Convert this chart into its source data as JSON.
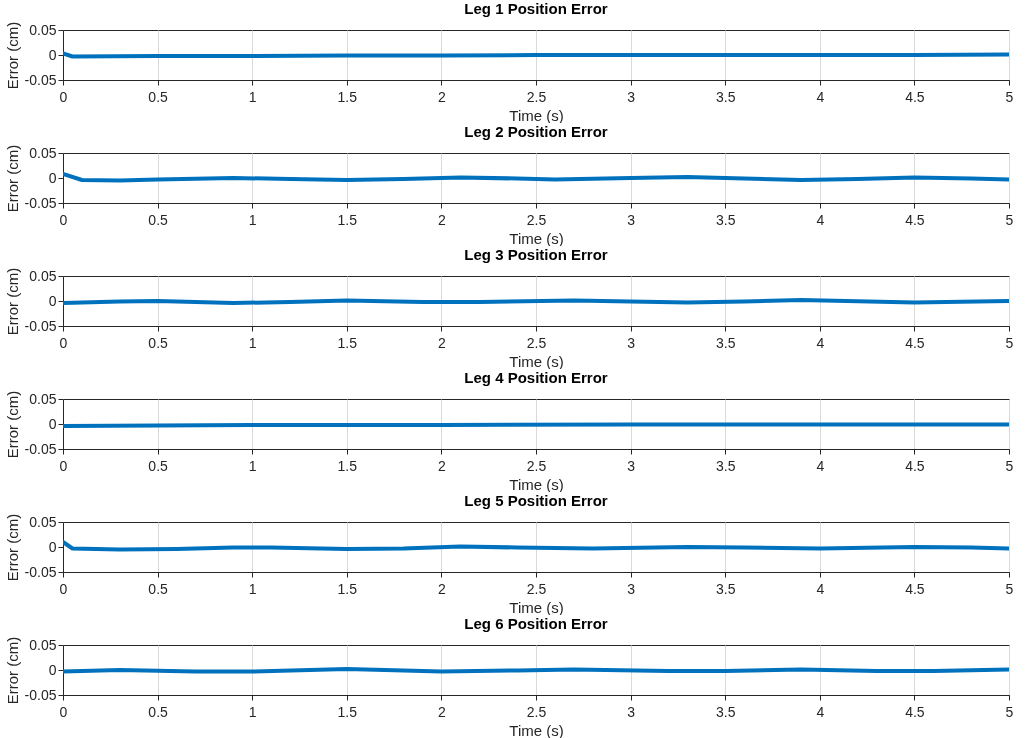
{
  "chart_data": [
    {
      "type": "line",
      "title": "Leg 1 Position Error",
      "xlabel": "Time (s)",
      "ylabel": "Error (cm)",
      "xlim": [
        0,
        5
      ],
      "ylim": [
        -0.05,
        0.05
      ],
      "xticks": [
        0,
        0.5,
        1,
        1.5,
        2,
        2.5,
        3,
        3.5,
        4,
        4.5,
        5
      ],
      "yticks": [
        -0.05,
        0,
        0.05
      ],
      "grid": "x",
      "series": [
        {
          "color": "#0072bd",
          "x": [
            0,
            0.05,
            0.5,
            1,
            1.5,
            2,
            2.5,
            3,
            3.5,
            4,
            4.5,
            5
          ],
          "values": [
            0.003,
            -0.003,
            -0.002,
            -0.002,
            -0.001,
            -0.001,
            0,
            0,
            0,
            0,
            0,
            0.001
          ]
        }
      ]
    },
    {
      "type": "line",
      "title": "Leg 2 Position Error",
      "xlabel": "Time (s)",
      "ylabel": "Error (cm)",
      "xlim": [
        0,
        5
      ],
      "ylim": [
        -0.05,
        0.05
      ],
      "xticks": [
        0,
        0.5,
        1,
        1.5,
        2,
        2.5,
        3,
        3.5,
        4,
        4.5,
        5
      ],
      "yticks": [
        -0.05,
        0,
        0.05
      ],
      "grid": "x",
      "series": [
        {
          "color": "#0072bd",
          "x": [
            0,
            0.1,
            0.3,
            0.5,
            0.9,
            1.2,
            1.5,
            1.8,
            2.1,
            2.4,
            2.6,
            3,
            3.3,
            3.6,
            3.9,
            4.2,
            4.5,
            4.8,
            5
          ],
          "values": [
            0.008,
            -0.004,
            -0.005,
            -0.003,
            0,
            -0.002,
            -0.004,
            -0.002,
            0.001,
            -0.001,
            -0.003,
            0,
            0.002,
            -0.001,
            -0.004,
            -0.002,
            0.001,
            -0.001,
            -0.003
          ]
        }
      ]
    },
    {
      "type": "line",
      "title": "Leg 3 Position Error",
      "xlabel": "Time (s)",
      "ylabel": "Error (cm)",
      "xlim": [
        0,
        5
      ],
      "ylim": [
        -0.05,
        0.05
      ],
      "xticks": [
        0,
        0.5,
        1,
        1.5,
        2,
        2.5,
        3,
        3.5,
        4,
        4.5,
        5
      ],
      "yticks": [
        -0.05,
        0,
        0.05
      ],
      "grid": "x",
      "series": [
        {
          "color": "#0072bd",
          "x": [
            0,
            0.3,
            0.5,
            0.9,
            1.2,
            1.5,
            1.9,
            2.2,
            2.7,
            3.3,
            3.6,
            3.9,
            4.5,
            5
          ],
          "values": [
            -0.004,
            -0.001,
            0,
            -0.004,
            -0.002,
            0.001,
            -0.002,
            -0.002,
            0.001,
            -0.003,
            -0.001,
            0.002,
            -0.003,
            0
          ]
        }
      ]
    },
    {
      "type": "line",
      "title": "Leg 4 Position Error",
      "xlabel": "Time (s)",
      "ylabel": "Error (cm)",
      "xlim": [
        0,
        5
      ],
      "ylim": [
        -0.05,
        0.05
      ],
      "xticks": [
        0,
        0.5,
        1,
        1.5,
        2,
        2.5,
        3,
        3.5,
        4,
        4.5,
        5
      ],
      "yticks": [
        -0.05,
        0,
        0.05
      ],
      "grid": "x",
      "series": [
        {
          "color": "#0072bd",
          "x": [
            0,
            0.5,
            1,
            2,
            3,
            5
          ],
          "values": [
            -0.004,
            -0.003,
            -0.002,
            -0.002,
            -0.001,
            -0.001
          ]
        }
      ]
    },
    {
      "type": "line",
      "title": "Leg 5 Position Error",
      "xlabel": "Time (s)",
      "ylabel": "Error (cm)",
      "xlim": [
        0,
        5
      ],
      "ylim": [
        -0.05,
        0.05
      ],
      "xticks": [
        0,
        0.5,
        1,
        1.5,
        2,
        2.5,
        3,
        3.5,
        4,
        4.5,
        5
      ],
      "yticks": [
        -0.05,
        0,
        0.05
      ],
      "grid": "x",
      "series": [
        {
          "color": "#0072bd",
          "x": [
            0,
            0.05,
            0.3,
            0.6,
            0.9,
            1.1,
            1.5,
            1.8,
            2.1,
            2.4,
            2.8,
            3.3,
            3.6,
            4,
            4.5,
            4.8,
            5
          ],
          "values": [
            0.01,
            -0.003,
            -0.005,
            -0.004,
            -0.001,
            -0.001,
            -0.004,
            -0.003,
            0.001,
            -0.001,
            -0.003,
            0,
            -0.001,
            -0.003,
            0,
            -0.001,
            -0.003
          ]
        }
      ]
    },
    {
      "type": "line",
      "title": "Leg 6 Position Error",
      "xlabel": "Time (s)",
      "ylabel": "Error (cm)",
      "xlim": [
        0,
        5
      ],
      "ylim": [
        -0.05,
        0.05
      ],
      "xticks": [
        0,
        0.5,
        1,
        1.5,
        2,
        2.5,
        3,
        3.5,
        4,
        4.5,
        5
      ],
      "yticks": [
        -0.05,
        0,
        0.05
      ],
      "grid": "x",
      "series": [
        {
          "color": "#0072bd",
          "x": [
            0,
            0.3,
            0.7,
            1,
            1.5,
            2,
            2.4,
            2.7,
            3.2,
            3.5,
            3.9,
            4.3,
            4.6,
            5
          ],
          "values": [
            -0.003,
            0,
            -0.003,
            -0.003,
            0.002,
            -0.003,
            -0.001,
            0.001,
            -0.002,
            -0.002,
            0.001,
            -0.002,
            -0.002,
            0.001
          ]
        }
      ]
    }
  ]
}
